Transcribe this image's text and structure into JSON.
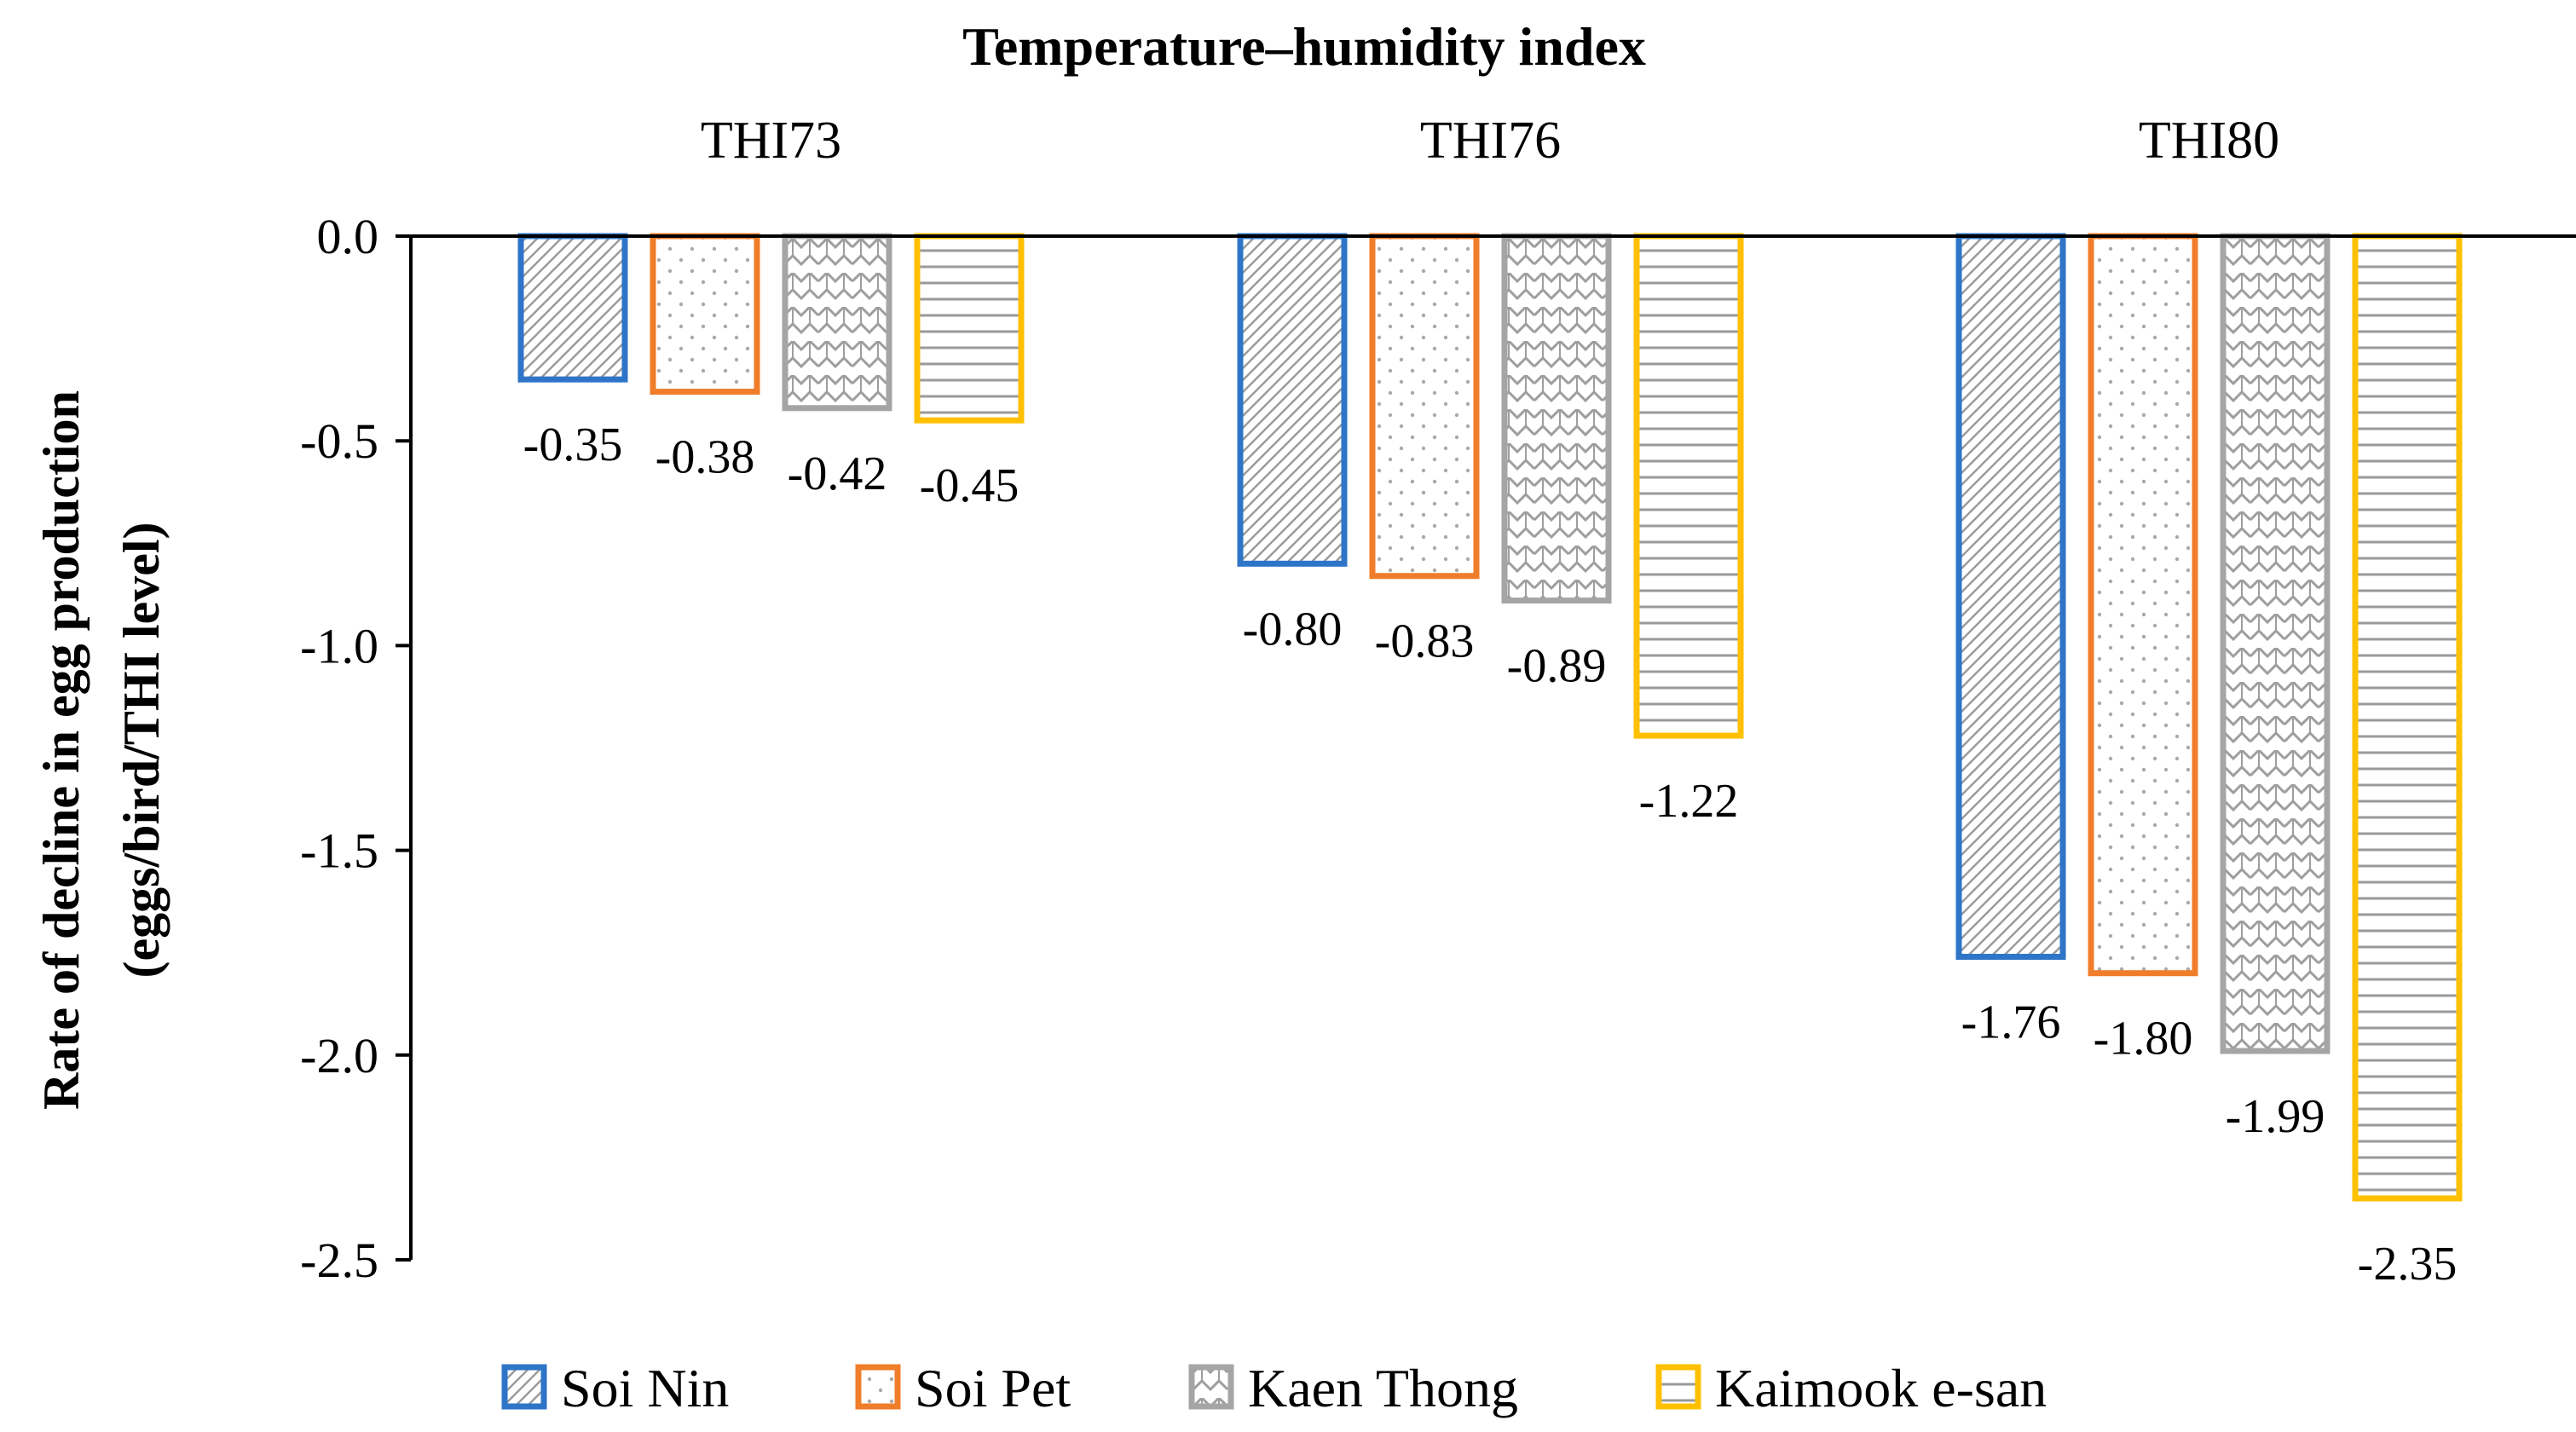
{
  "chart_data": {
    "type": "bar",
    "title": "Temperature–humidity index",
    "ylabel_line1": "Rate of decline in egg production",
    "ylabel_line2": "(eggs/bird/THI level)",
    "xlabel": "",
    "categories": [
      "THI73",
      "THI76",
      "THI80"
    ],
    "ylim": [
      -2.5,
      0.0
    ],
    "yticks": [
      "0.0",
      "-0.5",
      "-1.0",
      "-1.5",
      "-2.0",
      "-2.5"
    ],
    "ytick_values": [
      0.0,
      -0.5,
      -1.0,
      -1.5,
      -2.0,
      -2.5
    ],
    "grid": false,
    "legend_position": "bottom",
    "series": [
      {
        "name": "Soi Nin",
        "values": [
          -0.35,
          -0.8,
          -1.76
        ],
        "labels": [
          "-0.35",
          "-0.80",
          "-1.76"
        ],
        "color": "#2E75C8",
        "pattern": "diagonal-hatch"
      },
      {
        "name": "Soi Pet",
        "values": [
          -0.38,
          -0.83,
          -1.8
        ],
        "labels": [
          "-0.38",
          "-0.83",
          "-1.80"
        ],
        "color": "#F07D2A",
        "pattern": "dots"
      },
      {
        "name": "Kaen Thong",
        "values": [
          -0.42,
          -0.89,
          -1.99
        ],
        "labels": [
          "-0.42",
          "-0.89",
          "-1.99"
        ],
        "color": "#A5A5A5",
        "pattern": "zigzag"
      },
      {
        "name": "Kaimook e-san",
        "values": [
          -0.45,
          -1.22,
          -2.35
        ],
        "labels": [
          "-0.45",
          "-1.22",
          "-2.35"
        ],
        "color": "#FFC000",
        "pattern": "horizontal-lines"
      }
    ]
  }
}
